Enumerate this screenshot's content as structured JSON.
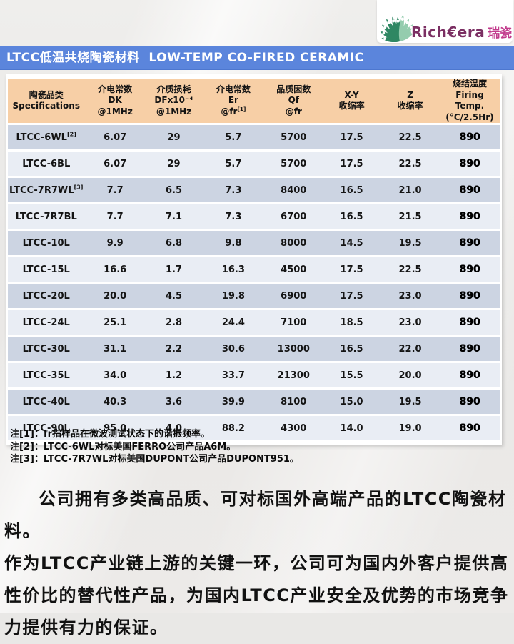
{
  "logo": {
    "brand_en": "Rich€era",
    "brand_cn": "瑞瓷",
    "icon": "fan-leaves-icon",
    "colors": {
      "brand_en": "#7b2f63",
      "brand_cn": "#c23a8c",
      "leaf_dark": "#2f8763",
      "leaf_light": "#94ccae"
    }
  },
  "title_bar": {
    "text": "LTCC低温共烧陶瓷材料  LOW-TEMP CO-FIRED CERAMIC",
    "bg_color": "#5b85dc"
  },
  "table": {
    "header_bg": "#f7cfa6",
    "row_color_dark": "#ccd4e2",
    "row_color_light": "#e9edf4",
    "columns": [
      {
        "lines": [
          "陶瓷品类",
          "Specifications"
        ]
      },
      {
        "lines": [
          "介电常数",
          "DK",
          "@1MHz"
        ]
      },
      {
        "lines": [
          "介质损耗",
          "DFx10⁻⁴",
          "@1MHz"
        ]
      },
      {
        "lines": [
          "介电常数",
          "Er",
          "@fr"
        ],
        "sup": "[1]"
      },
      {
        "lines": [
          "品质因数",
          "Qf",
          "@fr"
        ]
      },
      {
        "lines": [
          "X-Y",
          "收缩率"
        ]
      },
      {
        "lines": [
          "Z",
          "收缩率"
        ]
      },
      {
        "lines": [
          "烧结温度",
          "Firing",
          "Temp.",
          "(°C/2.5Hr)"
        ]
      }
    ],
    "col_widths": [
      "15.6%",
      "12.4%",
      "11.5%",
      "12.7%",
      "11.8%",
      "11.8%",
      "12.0%",
      "12.2%"
    ],
    "rows": [
      {
        "name": "LTCC-6WL",
        "sup": "[2]",
        "dk": "6.07",
        "df": "29",
        "er": "5.7",
        "qf": "5700",
        "xy": "17.5",
        "z": "22.5",
        "temp": "890"
      },
      {
        "name": "LTCC-6BL",
        "sup": "",
        "dk": "6.07",
        "df": "29",
        "er": "5.7",
        "qf": "5700",
        "xy": "17.5",
        "z": "22.5",
        "temp": "890"
      },
      {
        "name": "LTCC-7R7WL",
        "sup": "[3]",
        "dk": "7.7",
        "df": "6.5",
        "er": "7.3",
        "qf": "8400",
        "xy": "16.5",
        "z": "21.0",
        "temp": "890"
      },
      {
        "name": "LTCC-7R7BL",
        "sup": "",
        "dk": "7.7",
        "df": "7.1",
        "er": "7.3",
        "qf": "6700",
        "xy": "16.5",
        "z": "21.5",
        "temp": "890"
      },
      {
        "name": "LTCC-10L",
        "sup": "",
        "dk": "9.9",
        "df": "6.8",
        "er": "9.8",
        "qf": "8000",
        "xy": "14.5",
        "z": "19.5",
        "temp": "890"
      },
      {
        "name": "LTCC-15L",
        "sup": "",
        "dk": "16.6",
        "df": "1.7",
        "er": "16.3",
        "qf": "4500",
        "xy": "17.5",
        "z": "22.5",
        "temp": "890"
      },
      {
        "name": "LTCC-20L",
        "sup": "",
        "dk": "20.0",
        "df": "4.5",
        "er": "19.8",
        "qf": "6900",
        "xy": "17.5",
        "z": "23.0",
        "temp": "890"
      },
      {
        "name": "LTCC-24L",
        "sup": "",
        "dk": "25.1",
        "df": "2.8",
        "er": "24.4",
        "qf": "7100",
        "xy": "18.5",
        "z": "23.0",
        "temp": "890"
      },
      {
        "name": "LTCC-30L",
        "sup": "",
        "dk": "31.1",
        "df": "2.2",
        "er": "30.6",
        "qf": "13000",
        "xy": "16.5",
        "z": "22.0",
        "temp": "890"
      },
      {
        "name": "LTCC-35L",
        "sup": "",
        "dk": "34.0",
        "df": "1.2",
        "er": "33.7",
        "qf": "21300",
        "xy": "15.5",
        "z": "20.0",
        "temp": "890"
      },
      {
        "name": "LTCC-40L",
        "sup": "",
        "dk": "40.3",
        "df": "3.6",
        "er": "39.9",
        "qf": "8100",
        "xy": "15.0",
        "z": "19.5",
        "temp": "890"
      },
      {
        "name": "LTCC-90L",
        "sup": "",
        "dk": "95.0",
        "df": "4.0",
        "er": "88.2",
        "qf": "4300",
        "xy": "14.0",
        "z": "19.0",
        "temp": "890"
      }
    ]
  },
  "notes": [
    "注[1]：fr指样品在微波测试状态下的谐振频率。",
    "注[2]：LTCC-6WL对标美国FERRO公司产品A6M。",
    "注[3]：LTCC-7R7WL对标美国DUPONT公司产品DUPONT951。"
  ],
  "paragraph_lines": [
    "公司拥有多类高品质、可对标国外高端产品的LTCC陶瓷材料。",
    "作为LTCC产业链上游的关键一环，公司可为国内外客户提供高",
    "性价比的替代性产品，为国内LTCC产业安全及优势的市场竞争",
    "力提供有力的保证。"
  ]
}
